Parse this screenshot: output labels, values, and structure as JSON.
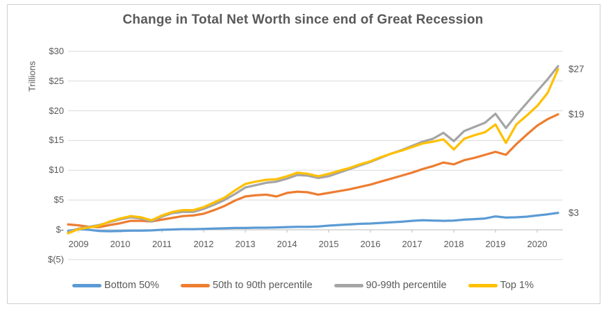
{
  "frame": {
    "title": "Change in Total Net Worth since end of Great Recession",
    "y_axis_label": "Trillions"
  },
  "chart_data": {
    "type": "line",
    "title": "Change in Total Net Worth since end of Great Recession",
    "xlabel": "",
    "ylabel": "Trillions",
    "units": "trillions of dollars, change since end of Great Recession",
    "grid": true,
    "legend_position": "bottom",
    "ylim": [
      -5,
      32
    ],
    "y_ticks": {
      "labels": [
        "$30",
        "$25",
        "$20",
        "$15",
        "$10",
        "$5",
        "$-",
        "$(5)"
      ],
      "values": [
        30,
        25,
        20,
        15,
        10,
        5,
        0,
        -5
      ]
    },
    "x_year_labels": [
      "2009",
      "2010",
      "2011",
      "2012",
      "2013",
      "2014",
      "2015",
      "2016",
      "2017",
      "2018",
      "2019",
      "2020"
    ],
    "x": [
      "2009 Q3",
      "2009 Q4",
      "2010 Q1",
      "2010 Q2",
      "2010 Q3",
      "2010 Q4",
      "2011 Q1",
      "2011 Q2",
      "2011 Q3",
      "2011 Q4",
      "2012 Q1",
      "2012 Q2",
      "2012 Q3",
      "2012 Q4",
      "2013 Q1",
      "2013 Q2",
      "2013 Q3",
      "2013 Q4",
      "2014 Q1",
      "2014 Q2",
      "2014 Q3",
      "2014 Q4",
      "2015 Q1",
      "2015 Q2",
      "2015 Q3",
      "2015 Q4",
      "2016 Q1",
      "2016 Q2",
      "2016 Q3",
      "2016 Q4",
      "2017 Q1",
      "2017 Q2",
      "2017 Q3",
      "2017 Q4",
      "2018 Q1",
      "2018 Q2",
      "2018 Q3",
      "2018 Q4",
      "2019 Q1",
      "2019 Q2",
      "2019 Q3",
      "2019 Q4",
      "2020 Q1",
      "2020 Q2",
      "2020 Q3",
      "2020 Q4",
      "2021 Q1",
      "2021 Q2"
    ],
    "series": [
      {
        "name": "Bottom 50%",
        "color": "#5B9BD5",
        "end_label": "$3",
        "values": [
          -0.2,
          0.1,
          0.0,
          -0.2,
          -0.25,
          -0.2,
          -0.15,
          -0.15,
          -0.1,
          0.0,
          0.05,
          0.1,
          0.1,
          0.15,
          0.2,
          0.25,
          0.3,
          0.3,
          0.35,
          0.35,
          0.4,
          0.45,
          0.5,
          0.5,
          0.55,
          0.7,
          0.8,
          0.9,
          1.0,
          1.05,
          1.15,
          1.25,
          1.35,
          1.5,
          1.6,
          1.55,
          1.5,
          1.55,
          1.7,
          1.8,
          1.9,
          2.25,
          2.05,
          2.1,
          2.2,
          2.4,
          2.6,
          2.85
        ]
      },
      {
        "name": "50th to 90th percentile",
        "color": "#ED7D31",
        "end_label": "$19",
        "values": [
          0.9,
          0.75,
          0.5,
          0.45,
          0.8,
          1.1,
          1.5,
          1.5,
          1.4,
          1.7,
          2.0,
          2.3,
          2.4,
          2.7,
          3.3,
          4.0,
          4.9,
          5.6,
          5.8,
          5.9,
          5.6,
          6.2,
          6.4,
          6.3,
          5.9,
          6.2,
          6.5,
          6.8,
          7.2,
          7.6,
          8.1,
          8.6,
          9.1,
          9.6,
          10.2,
          10.7,
          11.3,
          11.0,
          11.7,
          12.1,
          12.6,
          13.1,
          12.6,
          14.4,
          16.0,
          17.5,
          18.6,
          19.4
        ]
      },
      {
        "name": "90-99th percentile",
        "color": "#A5A5A5",
        "end_label": null,
        "values": [
          -0.4,
          0.2,
          0.5,
          0.8,
          1.3,
          1.75,
          2.1,
          1.9,
          1.4,
          2.2,
          2.8,
          3.0,
          3.0,
          3.5,
          4.2,
          5.0,
          6.0,
          7.1,
          7.5,
          7.9,
          8.1,
          8.6,
          9.2,
          9.1,
          8.7,
          9.0,
          9.6,
          10.2,
          10.8,
          11.4,
          12.1,
          12.8,
          13.4,
          14.1,
          14.8,
          15.3,
          16.3,
          14.9,
          16.6,
          17.3,
          18.0,
          19.5,
          17.1,
          19.3,
          21.3,
          23.3,
          25.3,
          27.5
        ]
      },
      {
        "name": "Top 1%",
        "color": "#FFC000",
        "end_label": "$27",
        "values": [
          -0.6,
          0.1,
          0.4,
          0.7,
          1.4,
          1.9,
          2.3,
          2.1,
          1.6,
          2.4,
          3.0,
          3.3,
          3.3,
          3.8,
          4.6,
          5.4,
          6.6,
          7.7,
          8.1,
          8.4,
          8.5,
          9.0,
          9.6,
          9.4,
          9.0,
          9.4,
          9.9,
          10.4,
          11.0,
          11.5,
          12.2,
          12.8,
          13.3,
          13.9,
          14.5,
          14.8,
          15.2,
          13.5,
          15.3,
          15.9,
          16.4,
          17.7,
          14.6,
          17.7,
          19.2,
          20.8,
          23.0,
          27.0
        ]
      }
    ],
    "colors": {
      "gridline": "#D9D9D9",
      "axis_line": "#C6C6C6",
      "text": "#595959"
    }
  }
}
